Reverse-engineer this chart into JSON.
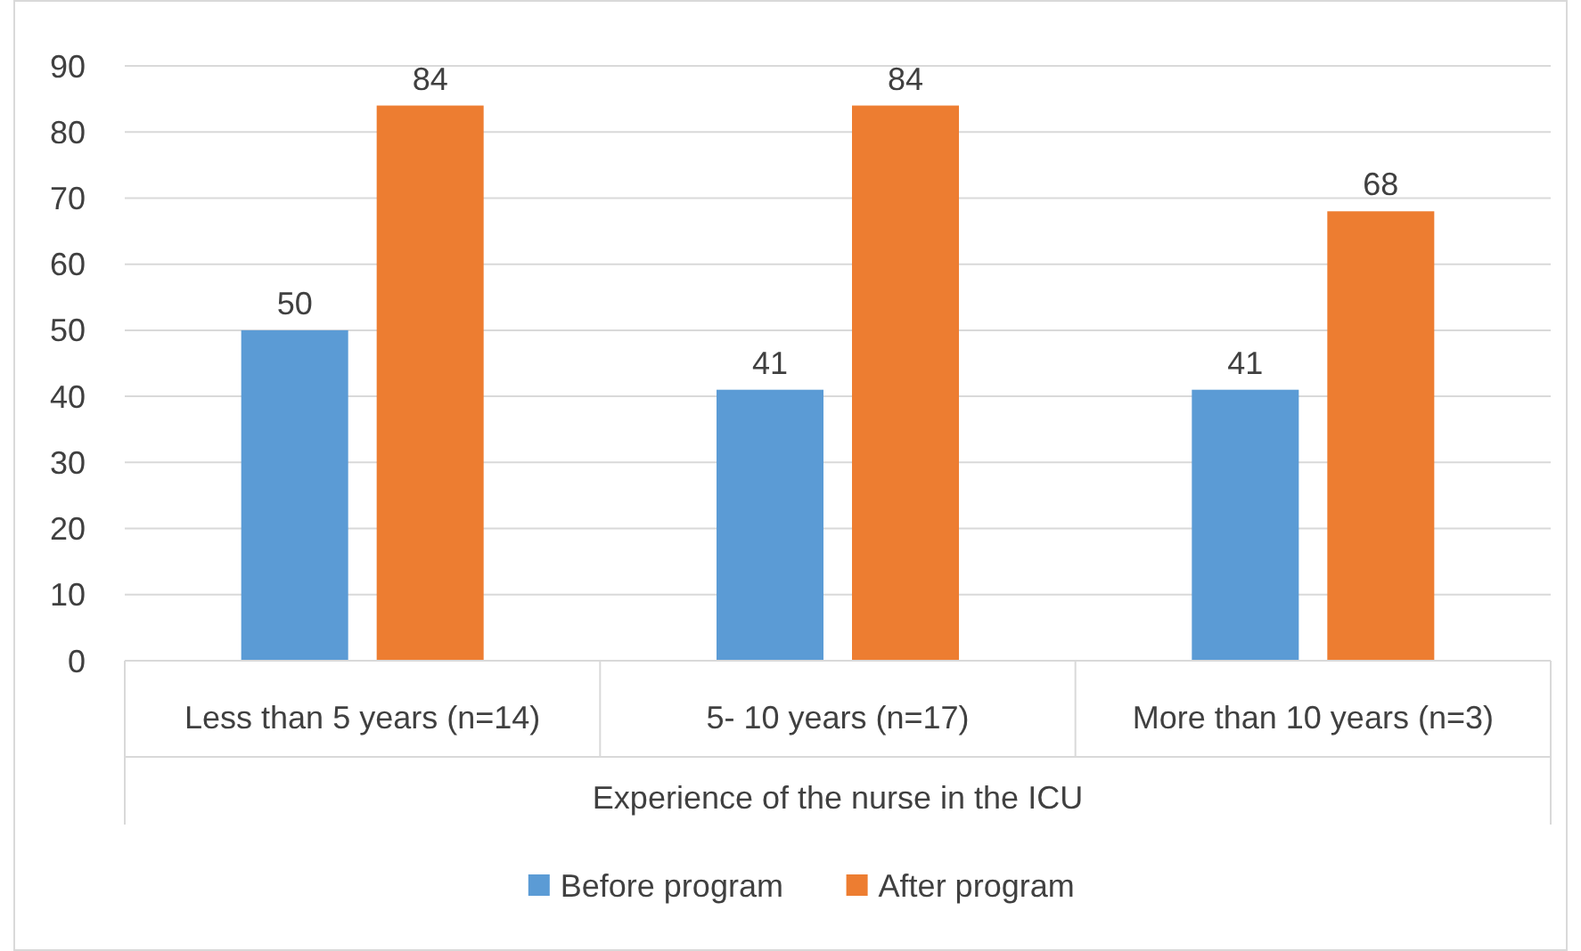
{
  "chart_data": {
    "type": "bar",
    "xlabel": "Experience of the nurse in the ICU",
    "categories": [
      "Less than 5 years (n=14)",
      "5- 10 years (n=17)",
      "More than 10 years (n=3)"
    ],
    "series": [
      {
        "name": "Before program",
        "color": "#5b9bd5",
        "values": [
          50,
          41,
          41
        ]
      },
      {
        "name": "After program",
        "color": "#ed7d31",
        "values": [
          84,
          84,
          68
        ]
      }
    ],
    "ylim": [
      0,
      90
    ],
    "yticks": [
      0,
      10,
      20,
      30,
      40,
      50,
      60,
      70,
      80,
      90
    ],
    "grid": "y",
    "legend": "bottom",
    "data_labels": true
  }
}
